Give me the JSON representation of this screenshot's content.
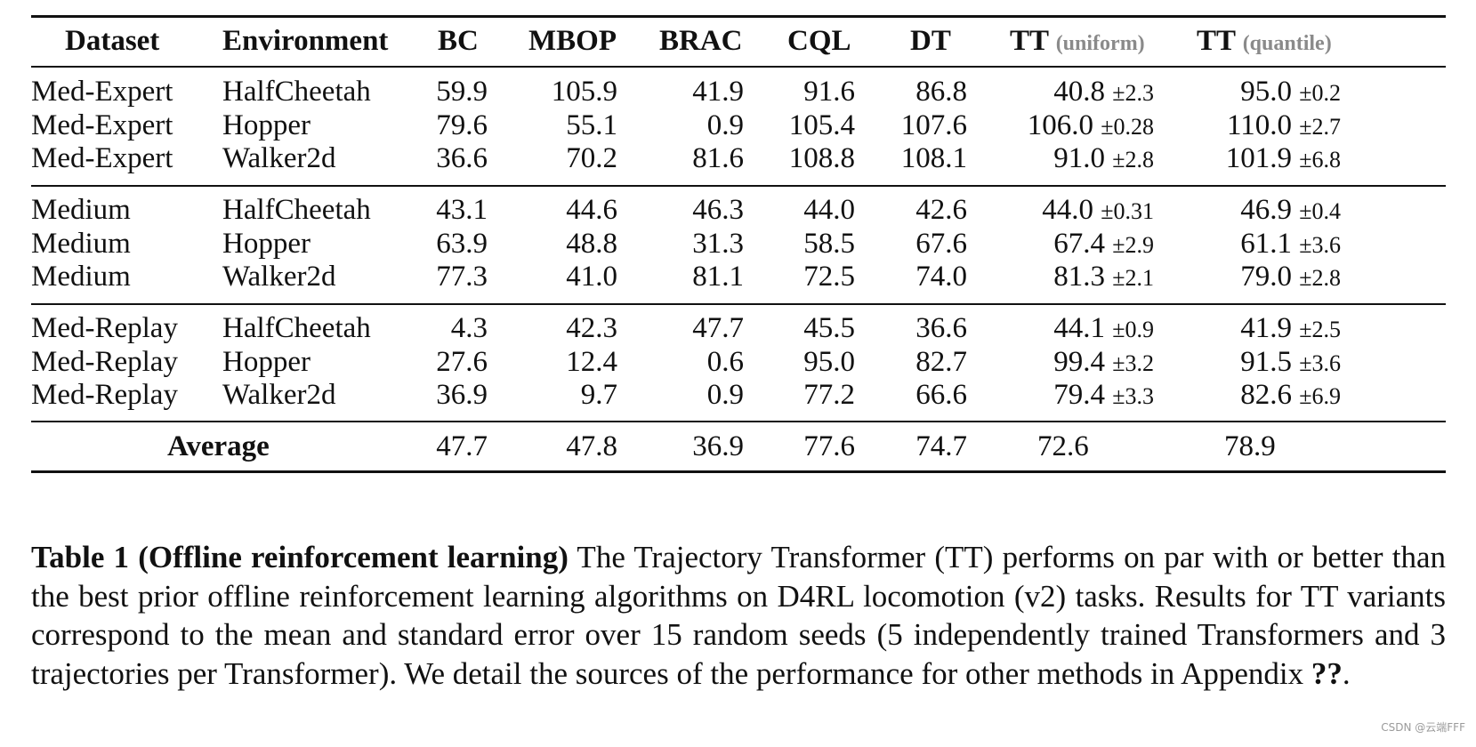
{
  "table": {
    "headers": [
      {
        "main": "Dataset",
        "sub": ""
      },
      {
        "main": "Environment",
        "sub": ""
      },
      {
        "main": "BC",
        "sub": ""
      },
      {
        "main": "MBOP",
        "sub": ""
      },
      {
        "main": "BRAC",
        "sub": ""
      },
      {
        "main": "CQL",
        "sub": ""
      },
      {
        "main": "DT",
        "sub": ""
      },
      {
        "main": "TT",
        "sub": "(uniform)"
      },
      {
        "main": "TT",
        "sub": "(quantile)"
      }
    ],
    "groups": [
      {
        "rows": [
          {
            "dataset": "Med-Expert",
            "env": "HalfCheetah",
            "bc": "59.9",
            "mbop": "105.9",
            "brac": "41.9",
            "cql": "91.6",
            "dt": "86.8",
            "tt_u": "40.8",
            "tt_u_se": "±2.3",
            "tt_q": "95.0",
            "tt_q_se": "±0.2"
          },
          {
            "dataset": "Med-Expert",
            "env": "Hopper",
            "bc": "79.6",
            "mbop": "55.1",
            "brac": "0.9",
            "cql": "105.4",
            "dt": "107.6",
            "tt_u": "106.0",
            "tt_u_se": "±0.28",
            "tt_q": "110.0",
            "tt_q_se": "±2.7"
          },
          {
            "dataset": "Med-Expert",
            "env": "Walker2d",
            "bc": "36.6",
            "mbop": "70.2",
            "brac": "81.6",
            "cql": "108.8",
            "dt": "108.1",
            "tt_u": "91.0",
            "tt_u_se": "±2.8",
            "tt_q": "101.9",
            "tt_q_se": "±6.8"
          }
        ]
      },
      {
        "rows": [
          {
            "dataset": "Medium",
            "env": "HalfCheetah",
            "bc": "43.1",
            "mbop": "44.6",
            "brac": "46.3",
            "cql": "44.0",
            "dt": "42.6",
            "tt_u": "44.0",
            "tt_u_se": "±0.31",
            "tt_q": "46.9",
            "tt_q_se": "±0.4"
          },
          {
            "dataset": "Medium",
            "env": "Hopper",
            "bc": "63.9",
            "mbop": "48.8",
            "brac": "31.3",
            "cql": "58.5",
            "dt": "67.6",
            "tt_u": "67.4",
            "tt_u_se": "±2.9",
            "tt_q": "61.1",
            "tt_q_se": "±3.6"
          },
          {
            "dataset": "Medium",
            "env": "Walker2d",
            "bc": "77.3",
            "mbop": "41.0",
            "brac": "81.1",
            "cql": "72.5",
            "dt": "74.0",
            "tt_u": "81.3",
            "tt_u_se": "±2.1",
            "tt_q": "79.0",
            "tt_q_se": "±2.8"
          }
        ]
      },
      {
        "rows": [
          {
            "dataset": "Med-Replay",
            "env": "HalfCheetah",
            "bc": "4.3",
            "mbop": "42.3",
            "brac": "47.7",
            "cql": "45.5",
            "dt": "36.6",
            "tt_u": "44.1",
            "tt_u_se": "±0.9",
            "tt_q": "41.9",
            "tt_q_se": "±2.5"
          },
          {
            "dataset": "Med-Replay",
            "env": "Hopper",
            "bc": "27.6",
            "mbop": "12.4",
            "brac": "0.6",
            "cql": "95.0",
            "dt": "82.7",
            "tt_u": "99.4",
            "tt_u_se": "±3.2",
            "tt_q": "91.5",
            "tt_q_se": "±3.6"
          },
          {
            "dataset": "Med-Replay",
            "env": "Walker2d",
            "bc": "36.9",
            "mbop": "9.7",
            "brac": "0.9",
            "cql": "77.2",
            "dt": "66.6",
            "tt_u": "79.4",
            "tt_u_se": "±3.3",
            "tt_q": "82.6",
            "tt_q_se": "±6.9"
          }
        ]
      }
    ],
    "average": {
      "label": "Average",
      "bc": "47.7",
      "mbop": "47.8",
      "brac": "36.9",
      "cql": "77.6",
      "dt": "74.7",
      "tt_u": "72.6",
      "tt_q": "78.9"
    }
  },
  "caption": {
    "title": "Table 1 (Offline reinforcement learning)",
    "text": " The Trajectory Transformer (TT) performs on par with or better than the best prior offline reinforcement learning algorithms on D4RL locomotion (v2) tasks. Results for TT variants correspond to the mean and standard error over 15 random seeds (5 independently trained Transformers and 3 trajectories per Transformer). We detail the sources of the performance for other methods in Appendix ",
    "ref": "??",
    "end": "."
  },
  "watermark": "CSDN @云端FFF"
}
